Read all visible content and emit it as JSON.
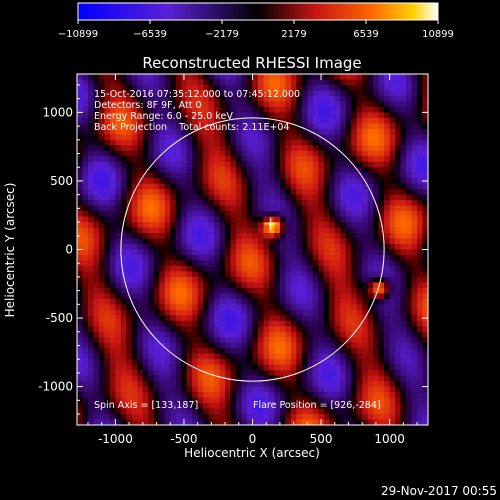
{
  "chart_data": {
    "type": "heatmap",
    "title": "Reconstructed RHESSI Image",
    "xlabel": "Heliocentric X (arcsec)",
    "ylabel": "Heliocentric Y (arcsec)",
    "xlim": [
      -1280,
      1280
    ],
    "ylim": [
      -1280,
      1280
    ],
    "x_ticks": [
      -1000,
      -500,
      0,
      500,
      1000
    ],
    "y_ticks": [
      -1000,
      -500,
      0,
      500,
      1000
    ],
    "colorbar": {
      "min": -10899,
      "max": 10899,
      "ticks": [
        -10899,
        -6539,
        -2179,
        2179,
        6539,
        10899
      ],
      "tick_labels": [
        "−10899",
        "−6539",
        "−2179",
        "2179",
        "6539",
        "10899"
      ]
    },
    "info_lines": [
      "15-Oct-2016 07:35:12.000 to 07:45:12.000",
      "Detectors: 8F 9F, Att 0",
      "Energy Range: 6.0 - 25.0 keV",
      "Back Projection    Total counts: 2.11E+04"
    ],
    "spin_axis": "Spin Axis = [133,187]",
    "flare_position": "Flare Position = [926,-284]",
    "solar_limb_radius": 960,
    "marker": {
      "x": 133,
      "y": 187
    },
    "hot_sources": [
      {
        "x": 150,
        "y": 170,
        "amplitude": 10899
      },
      {
        "x": 926,
        "y": -284,
        "amplitude": 9500
      }
    ],
    "date_stamp": "29-Nov-2017 00:55"
  }
}
